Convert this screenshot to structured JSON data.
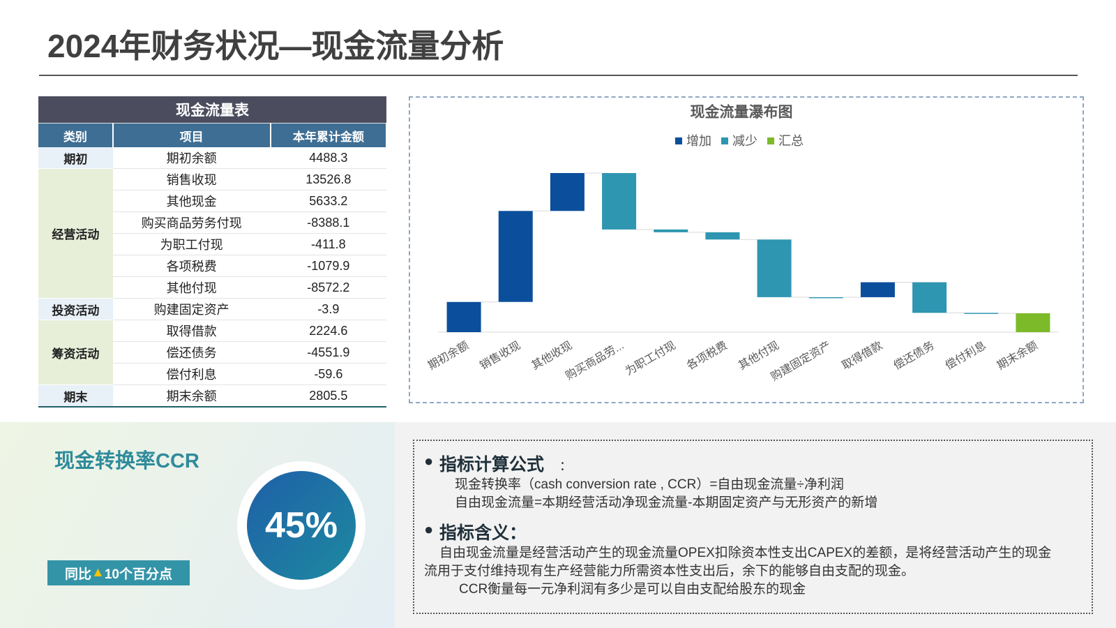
{
  "header": {
    "title": "2024年财务状况—现金流量分析"
  },
  "table": {
    "title": "现金流量表",
    "columns": [
      "类别",
      "项目",
      "本年累计金额"
    ],
    "groups": [
      {
        "category": "期初",
        "rows": [
          {
            "item": "期初余额",
            "amount": 4488.3
          }
        ]
      },
      {
        "category": "经营活动",
        "rows": [
          {
            "item": "销售收现",
            "amount": 13526.8
          },
          {
            "item": "其他现金",
            "amount": 5633.2
          },
          {
            "item": "购买商品劳务付现",
            "amount": -8388.1
          },
          {
            "item": "为职工付现",
            "amount": -411.8
          },
          {
            "item": "各项税费",
            "amount": -1079.9
          },
          {
            "item": "其他付现",
            "amount": -8572.2
          }
        ]
      },
      {
        "category": "投资活动",
        "rows": [
          {
            "item": "购建固定资产",
            "amount": -3.9
          }
        ]
      },
      {
        "category": "筹资活动",
        "rows": [
          {
            "item": "取得借款",
            "amount": 2224.6
          },
          {
            "item": "偿还债务",
            "amount": -4551.9
          },
          {
            "item": "偿付利息",
            "amount": -59.6
          }
        ]
      },
      {
        "category": "期末",
        "rows": [
          {
            "item": "期末余额",
            "amount": 2805.5
          }
        ]
      }
    ]
  },
  "chart_data": {
    "type": "waterfall",
    "title": "现金流量瀑布图",
    "categories": [
      "期初余额",
      "销售收现",
      "其他收现",
      "购买商品劳...",
      "为职工付现",
      "各项税费",
      "其他付现",
      "购建固定资产",
      "取得借款",
      "偿还债务",
      "偿付利息",
      "期末余额"
    ],
    "series": [
      {
        "name": "增加",
        "color": "#0b4f9c",
        "values": [
          4488.3,
          13526.8,
          5633.2,
          null,
          null,
          null,
          null,
          null,
          2224.6,
          null,
          null,
          null
        ]
      },
      {
        "name": "减少",
        "color": "#2e96b0",
        "values": [
          null,
          null,
          null,
          -8388.1,
          -411.8,
          -1079.9,
          -8572.2,
          -3.9,
          null,
          -4551.9,
          -59.6,
          null
        ]
      },
      {
        "name": "汇总",
        "color": "#7cba2a",
        "total": true,
        "values": [
          null,
          null,
          null,
          null,
          null,
          null,
          null,
          null,
          null,
          null,
          null,
          2805.5
        ]
      }
    ]
  },
  "ccr": {
    "title": "现金转换率CCR",
    "value": "45%",
    "badge_prefix": "同比",
    "badge_arrow": "▲",
    "badge_text": "10个百分点"
  },
  "notes": {
    "formula": {
      "heading": "指标计算公式",
      "colon": "：",
      "lines": [
        "现金转换率（cash conversion rate , CCR）=自由现金流量÷净利润",
        "自由现金流量=本期经营活动净现金流量-本期固定资产与无形资产的新增"
      ]
    },
    "meaning": {
      "heading": "指标含义：",
      "lines": [
        "自由现金流量是经营活动产生的现金流量OPEX扣除资本性支出CAPEX的差额，是将经营活动产生的现金流用于支付维持现有生产经营能力所需资本性支出后，余下的能够自由支配的现金。",
        "CCR衡量每一元净利润有多少是可以自由支配给股东的现金"
      ]
    }
  }
}
